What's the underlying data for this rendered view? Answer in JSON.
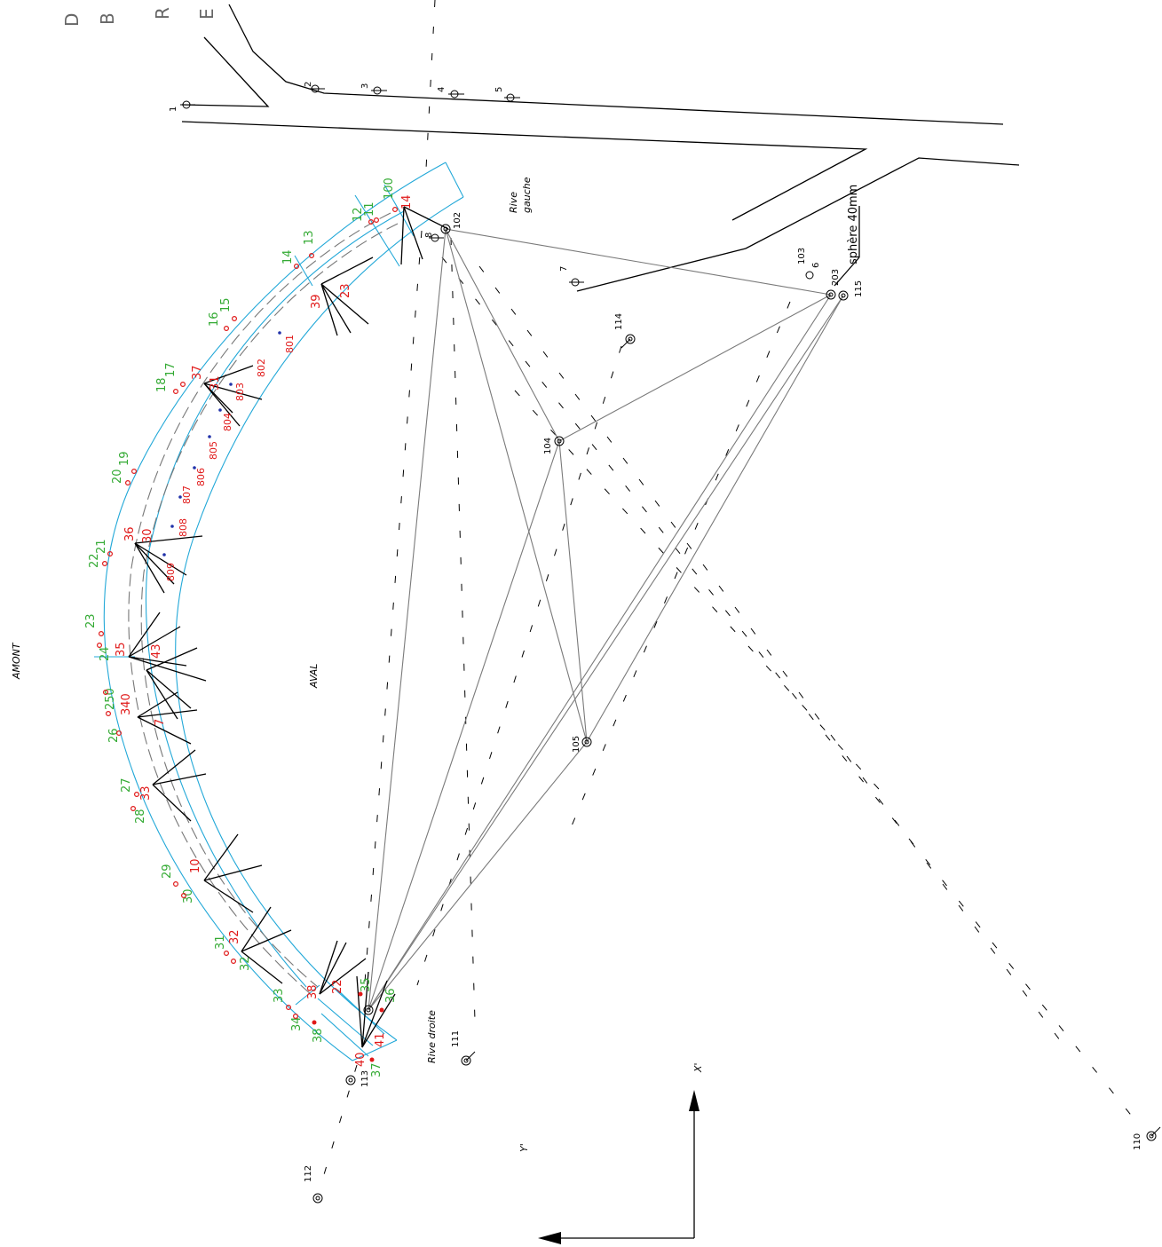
{
  "header_letters": [
    "D",
    "B",
    "R",
    "E"
  ],
  "labels": {
    "amont": "AMONT",
    "aval": "AVAL",
    "rive_gauche_1": "Rive",
    "rive_gauche_2": "gauche",
    "rive_droite": "Rive  droite",
    "sphere": "sphère  40mm",
    "axis_x": "X'",
    "axis_y": "Y'"
  },
  "stations": [
    {
      "id": "102"
    },
    {
      "id": "103"
    },
    {
      "id": "104"
    },
    {
      "id": "105"
    },
    {
      "id": "110"
    },
    {
      "id": "111"
    },
    {
      "id": "112"
    },
    {
      "id": "113"
    },
    {
      "id": "114"
    },
    {
      "id": "115"
    },
    {
      "id": "203"
    }
  ],
  "benchmarks": [
    "1",
    "2",
    "3",
    "4",
    "5",
    "6",
    "7",
    "8"
  ],
  "green_numbers": [
    "100",
    "11",
    "12",
    "13",
    "14",
    "15",
    "16",
    "17",
    "18",
    "19",
    "20",
    "21",
    "22",
    "23",
    "24",
    "250",
    "26",
    "27",
    "28",
    "29",
    "30",
    "31",
    "32",
    "33",
    "34",
    "35",
    "36",
    "37",
    "38"
  ],
  "red_numbers": [
    "14",
    "23",
    "39",
    "37",
    "31",
    "30",
    "36",
    "35",
    "43",
    "340",
    "7",
    "33",
    "10",
    "32",
    "38",
    "22",
    "40",
    "41",
    "801",
    "802",
    "803",
    "804",
    "805",
    "806",
    "807",
    "808",
    "809"
  ],
  "colors": {
    "dam_outline": "#22a8d8",
    "target_green": "#33aa33",
    "target_red": "#e01818",
    "sight_lines": "#7a7a7a",
    "terrain": "#000000"
  }
}
